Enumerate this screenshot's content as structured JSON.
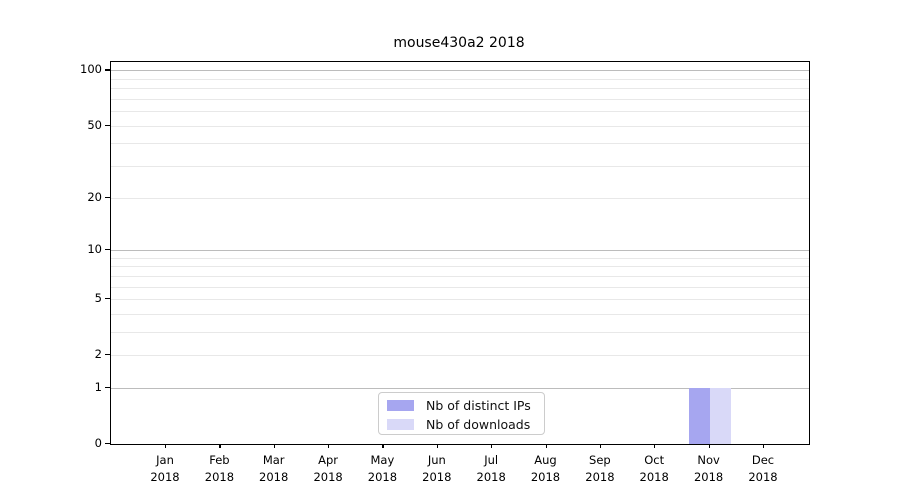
{
  "figure": {
    "title": "mouse430a2 2018"
  },
  "chart_data": {
    "type": "bar",
    "title": "mouse430a2 2018",
    "categories": [
      "Jan 2018",
      "Feb 2018",
      "Mar 2018",
      "Apr 2018",
      "May 2018",
      "Jun 2018",
      "Jul 2018",
      "Aug 2018",
      "Sep 2018",
      "Oct 2018",
      "Nov 2018",
      "Dec 2018"
    ],
    "x_tick_months": [
      "Jan",
      "Feb",
      "Mar",
      "Apr",
      "May",
      "Jun",
      "Jul",
      "Aug",
      "Sep",
      "Oct",
      "Nov",
      "Dec"
    ],
    "x_tick_year": "2018",
    "series": [
      {
        "name": "Nb of distinct IPs",
        "color": "#a6a6f0",
        "values": [
          0,
          0,
          0,
          0,
          0,
          0,
          0,
          0,
          0,
          0,
          1,
          0
        ]
      },
      {
        "name": "Nb of downloads",
        "color": "#d9d9f8",
        "values": [
          0,
          0,
          0,
          0,
          0,
          0,
          0,
          0,
          0,
          0,
          1,
          0
        ]
      }
    ],
    "xlabel": "",
    "ylabel": "",
    "y_axis": {
      "scale": "log1p",
      "tick_values": [
        0,
        1,
        2,
        5,
        10,
        20,
        50,
        100
      ],
      "ylim": [
        0,
        111
      ],
      "major_grid_values": [
        1,
        10,
        100
      ],
      "minor_grid_values": [
        2,
        3,
        4,
        5,
        6,
        7,
        8,
        9,
        20,
        30,
        40,
        50,
        60,
        70,
        80,
        90
      ]
    },
    "grid": "horizontal",
    "legend_position": "lower center"
  },
  "legend": {
    "items": [
      {
        "label": "Nb of distinct IPs",
        "color": "#a6a6f0"
      },
      {
        "label": "Nb of downloads",
        "color": "#d9d9f8"
      }
    ]
  },
  "colors": {
    "background": "#ffffff",
    "axis_frame": "#000000",
    "major_grid": "#bcbcbc",
    "minor_grid": "#e8e8e8",
    "text": "#000000",
    "bar_distinct_ips": "#a6a6f0",
    "bar_downloads": "#d9d9f8",
    "legend_border": "#cccccc"
  }
}
